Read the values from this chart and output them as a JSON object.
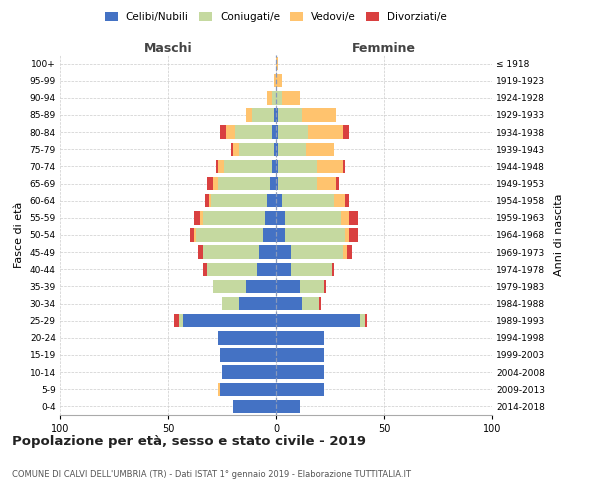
{
  "age_groups": [
    "0-4",
    "5-9",
    "10-14",
    "15-19",
    "20-24",
    "25-29",
    "30-34",
    "35-39",
    "40-44",
    "45-49",
    "50-54",
    "55-59",
    "60-64",
    "65-69",
    "70-74",
    "75-79",
    "80-84",
    "85-89",
    "90-94",
    "95-99",
    "100+"
  ],
  "birth_years": [
    "2014-2018",
    "2009-2013",
    "2004-2008",
    "1999-2003",
    "1994-1998",
    "1989-1993",
    "1984-1988",
    "1979-1983",
    "1974-1978",
    "1969-1973",
    "1964-1968",
    "1959-1963",
    "1954-1958",
    "1949-1953",
    "1944-1948",
    "1939-1943",
    "1934-1938",
    "1929-1933",
    "1924-1928",
    "1919-1923",
    "≤ 1918"
  ],
  "male": {
    "celibi": [
      20,
      26,
      25,
      26,
      27,
      43,
      17,
      14,
      9,
      8,
      6,
      5,
      4,
      3,
      2,
      1,
      2,
      1,
      0,
      0,
      0
    ],
    "coniugati": [
      0,
      0,
      0,
      0,
      0,
      2,
      8,
      15,
      23,
      26,
      31,
      29,
      26,
      24,
      22,
      16,
      17,
      10,
      2,
      0,
      0
    ],
    "vedovi": [
      0,
      1,
      0,
      0,
      0,
      0,
      0,
      0,
      0,
      0,
      1,
      1,
      1,
      2,
      3,
      3,
      4,
      3,
      2,
      1,
      0
    ],
    "divorziati": [
      0,
      0,
      0,
      0,
      0,
      2,
      0,
      0,
      2,
      2,
      2,
      3,
      2,
      3,
      1,
      1,
      3,
      0,
      0,
      0,
      0
    ]
  },
  "female": {
    "nubili": [
      11,
      22,
      22,
      22,
      22,
      39,
      12,
      11,
      7,
      7,
      4,
      4,
      3,
      1,
      1,
      1,
      1,
      1,
      0,
      0,
      0
    ],
    "coniugate": [
      0,
      0,
      0,
      0,
      0,
      2,
      8,
      11,
      19,
      24,
      28,
      26,
      24,
      18,
      18,
      13,
      14,
      11,
      3,
      0,
      0
    ],
    "vedove": [
      0,
      0,
      0,
      0,
      0,
      0,
      0,
      0,
      0,
      2,
      2,
      4,
      5,
      9,
      12,
      13,
      16,
      16,
      8,
      3,
      1
    ],
    "divorziate": [
      0,
      0,
      0,
      0,
      0,
      1,
      1,
      1,
      1,
      2,
      4,
      4,
      2,
      1,
      1,
      0,
      3,
      0,
      0,
      0,
      0
    ]
  },
  "colors": {
    "celibi": "#4472c4",
    "coniugati": "#c5d9a0",
    "vedovi": "#ffc36e",
    "divorziati": "#d94040"
  },
  "xlim": 100,
  "title": "Popolazione per età, sesso e stato civile - 2019",
  "subtitle": "COMUNE DI CALVI DELL'UMBRIA (TR) - Dati ISTAT 1° gennaio 2019 - Elaborazione TUTTITALIA.IT",
  "ylabel_left": "Fasce di età",
  "ylabel_right": "Anni di nascita",
  "xlabel_left": "Maschi",
  "xlabel_right": "Femmine"
}
